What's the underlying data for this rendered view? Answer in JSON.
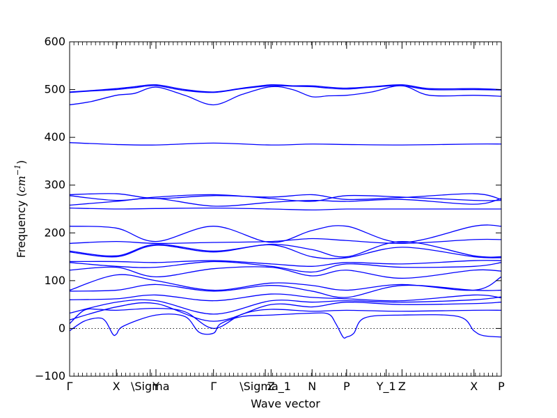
{
  "chart_data": {
    "type": "line",
    "xlabel": "Wave vector",
    "ylabel_text": "Frequency (",
    "ylabel_unit": "cm",
    "ylabel_exp": "−1",
    "ylabel_close": ")",
    "ylim": [
      -100,
      600
    ],
    "xlim": [
      0,
      6
    ],
    "yticks": [
      -100,
      0,
      100,
      200,
      300,
      400,
      500,
      600
    ],
    "zero_line": true,
    "grid": false,
    "line_color": "#0000ff",
    "high_symmetry_points": [
      {
        "label": "Γ",
        "x": 0.0
      },
      {
        "label": "X",
        "x": 0.65
      },
      {
        "label": "\\Sigma",
        "x": 1.12
      },
      {
        "label": "Y",
        "x": 1.2
      },
      {
        "label": "Γ",
        "x": 2.0
      },
      {
        "label": "\\Sigma_1",
        "x": 2.72
      },
      {
        "label": "Z",
        "x": 2.8
      },
      {
        "label": "N",
        "x": 3.37
      },
      {
        "label": "P",
        "x": 3.85
      },
      {
        "label": "Y_1",
        "x": 4.4
      },
      {
        "label": "Z",
        "x": 4.62
      },
      {
        "label": "X",
        "x": 5.62
      },
      {
        "label": "P",
        "x": 6.0
      }
    ],
    "series": [
      {
        "x": [
          0,
          0.3,
          0.65,
          0.9,
          1.2,
          1.6,
          2.0,
          2.4,
          2.8,
          3.1,
          3.37,
          3.6,
          3.85,
          4.2,
          4.62,
          5.0,
          5.62,
          6.0
        ],
        "y": [
          495,
          498,
          502,
          506,
          510,
          500,
          495,
          503,
          510,
          508,
          508,
          505,
          503,
          506,
          510,
          502,
          502,
          500
        ]
      },
      {
        "x": [
          0,
          0.3,
          0.65,
          0.9,
          1.2,
          1.6,
          2.0,
          2.4,
          2.8,
          3.1,
          3.37,
          3.6,
          3.85,
          4.2,
          4.62,
          5.0,
          5.62,
          6.0
        ],
        "y": [
          494,
          497,
          500,
          504,
          508,
          498,
          494,
          502,
          508,
          507,
          506,
          503,
          501,
          505,
          508,
          500,
          500,
          499
        ]
      },
      {
        "x": [
          0,
          0.3,
          0.65,
          0.9,
          1.2,
          1.6,
          2.0,
          2.4,
          2.8,
          3.1,
          3.37,
          3.6,
          3.85,
          4.2,
          4.62,
          5.0,
          5.62,
          6.0
        ],
        "y": [
          468,
          475,
          488,
          492,
          505,
          488,
          468,
          490,
          506,
          500,
          485,
          487,
          488,
          495,
          508,
          488,
          488,
          486
        ]
      },
      {
        "x": [
          0,
          0.65,
          1.2,
          2.0,
          2.8,
          3.37,
          3.85,
          4.62,
          5.62,
          6.0
        ],
        "y": [
          389,
          385,
          384,
          388,
          384,
          386,
          385,
          384,
          386,
          386
        ]
      },
      {
        "x": [
          0,
          0.65,
          1.2,
          2.0,
          2.8,
          3.37,
          3.85,
          4.62,
          5.62,
          6.0
        ],
        "y": [
          280,
          282,
          272,
          278,
          275,
          280,
          270,
          274,
          282,
          270
        ]
      },
      {
        "x": [
          0,
          0.65,
          1.2,
          2.0,
          2.8,
          3.37,
          3.85,
          4.62,
          5.62,
          6.0
        ],
        "y": [
          278,
          268,
          275,
          280,
          272,
          266,
          278,
          275,
          268,
          268
        ]
      },
      {
        "x": [
          0,
          0.65,
          1.2,
          2.0,
          2.8,
          3.37,
          3.85,
          4.62,
          5.62,
          6.0
        ],
        "y": [
          258,
          266,
          272,
          256,
          264,
          268,
          266,
          270,
          260,
          272
        ]
      },
      {
        "x": [
          0,
          0.65,
          1.2,
          2.0,
          2.8,
          3.37,
          3.85,
          4.62,
          5.62,
          6.0
        ],
        "y": [
          252,
          250,
          251,
          252,
          250,
          248,
          250,
          250,
          250,
          250
        ]
      },
      {
        "x": [
          0,
          0.65,
          1.2,
          2.0,
          2.8,
          3.37,
          3.85,
          4.62,
          5.62,
          6.0
        ],
        "y": [
          214,
          210,
          182,
          214,
          180,
          205,
          214,
          180,
          214,
          214
        ]
      },
      {
        "x": [
          0,
          0.65,
          1.2,
          2.0,
          2.8,
          3.37,
          3.85,
          4.62,
          5.62,
          6.0
        ],
        "y": [
          178,
          182,
          178,
          180,
          182,
          188,
          184,
          178,
          186,
          186
        ]
      },
      {
        "x": [
          0,
          0.65,
          1.2,
          2.0,
          2.8,
          3.37,
          3.85,
          4.62,
          5.62,
          6.0
        ],
        "y": [
          162,
          152,
          176,
          162,
          176,
          165,
          150,
          182,
          152,
          150
        ]
      },
      {
        "x": [
          0,
          0.65,
          1.2,
          2.0,
          2.8,
          3.37,
          3.85,
          4.62,
          5.62,
          6.0
        ],
        "y": [
          160,
          150,
          174,
          160,
          175,
          150,
          148,
          170,
          150,
          148
        ]
      },
      {
        "x": [
          0,
          0.65,
          1.2,
          2.0,
          2.8,
          3.37,
          3.85,
          4.62,
          5.62,
          6.0
        ],
        "y": [
          140,
          140,
          138,
          142,
          135,
          130,
          138,
          135,
          142,
          142
        ]
      },
      {
        "x": [
          0,
          0.65,
          1.2,
          2.0,
          2.8,
          3.37,
          3.85,
          4.62,
          5.62,
          6.0
        ],
        "y": [
          138,
          130,
          128,
          140,
          130,
          118,
          135,
          128,
          130,
          138
        ]
      },
      {
        "x": [
          0,
          0.65,
          1.2,
          2.0,
          2.8,
          3.37,
          3.85,
          4.62,
          5.62,
          6.0
        ],
        "y": [
          122,
          128,
          108,
          125,
          128,
          110,
          122,
          105,
          122,
          120
        ]
      },
      {
        "x": [
          0,
          0.65,
          1.2,
          2.0,
          2.8,
          3.37,
          3.85,
          4.62,
          5.62,
          6.0
        ],
        "y": [
          80,
          112,
          100,
          80,
          95,
          90,
          80,
          92,
          80,
          108
        ]
      },
      {
        "x": [
          0,
          0.65,
          1.2,
          2.0,
          2.8,
          3.37,
          3.85,
          4.62,
          5.62,
          6.0
        ],
        "y": [
          78,
          80,
          92,
          78,
          90,
          78,
          65,
          90,
          80,
          80
        ]
      },
      {
        "x": [
          0,
          0.65,
          1.2,
          2.0,
          2.8,
          3.37,
          3.85,
          4.62,
          5.62,
          6.0
        ],
        "y": [
          60,
          62,
          70,
          58,
          72,
          65,
          62,
          58,
          70,
          64
        ]
      },
      {
        "x": [
          0,
          0.65,
          1.2,
          2.0,
          2.8,
          3.37,
          3.85,
          4.62,
          5.62,
          6.0
        ],
        "y": [
          32,
          55,
          58,
          30,
          58,
          55,
          58,
          55,
          60,
          66
        ]
      },
      {
        "x": [
          0,
          0.65,
          1.2,
          2.0,
          2.8,
          3.37,
          3.85,
          4.62,
          5.62,
          6.0
        ],
        "y": [
          18,
          45,
          52,
          15,
          50,
          45,
          55,
          50,
          52,
          55
        ]
      },
      {
        "x": [
          0,
          0.2,
          0.4,
          0.65,
          1.2,
          1.6,
          2.0,
          2.4,
          2.8,
          3.37,
          3.85,
          4.62,
          5.62,
          6.0
        ],
        "y": [
          10,
          38,
          40,
          38,
          42,
          35,
          0,
          30,
          40,
          36,
          38,
          36,
          38,
          38
        ]
      },
      {
        "x": [
          0,
          0.2,
          0.4,
          0.5,
          0.6,
          0.65,
          0.75,
          1.2,
          1.6,
          1.8,
          2.0,
          2.1,
          2.4,
          2.8,
          3.37,
          3.6,
          3.7,
          3.8,
          3.85,
          3.95,
          4.1,
          4.62,
          5.4,
          5.62,
          5.75,
          6.0
        ],
        "y": [
          -5,
          15,
          22,
          15,
          -12,
          -12,
          5,
          28,
          25,
          -8,
          -10,
          10,
          25,
          28,
          32,
          30,
          10,
          -18,
          -18,
          -10,
          22,
          28,
          25,
          -5,
          -15,
          -18
        ]
      }
    ]
  }
}
